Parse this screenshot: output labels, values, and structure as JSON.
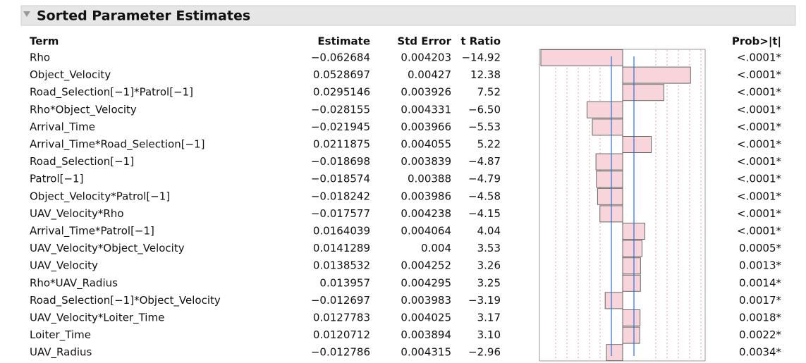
{
  "header": {
    "title": "Sorted Parameter Estimates"
  },
  "table": {
    "columns": [
      "Term",
      "Estimate",
      "Std Error",
      "t Ratio",
      "Prob>|t|"
    ],
    "rows": [
      {
        "term": "Rho",
        "estimate": "−0.062684",
        "std_error": "0.004203",
        "t_ratio": {
          "value": -14.92,
          "label": "−14.92"
        },
        "prob": "<.0001*"
      },
      {
        "term": "Object_Velocity",
        "estimate": "0.0528697",
        "std_error": "0.00427",
        "t_ratio": {
          "value": 12.38,
          "label": "12.38"
        },
        "prob": "<.0001*"
      },
      {
        "term": "Road_Selection[−1]*Patrol[−1]",
        "estimate": "0.0295146",
        "std_error": "0.003926",
        "t_ratio": {
          "value": 7.52,
          "label": "7.52"
        },
        "prob": "<.0001*"
      },
      {
        "term": "Rho*Object_Velocity",
        "estimate": "−0.028155",
        "std_error": "0.004331",
        "t_ratio": {
          "value": -6.5,
          "label": "−6.50"
        },
        "prob": "<.0001*"
      },
      {
        "term": "Arrival_Time",
        "estimate": "−0.021945",
        "std_error": "0.003966",
        "t_ratio": {
          "value": -5.53,
          "label": "−5.53"
        },
        "prob": "<.0001*"
      },
      {
        "term": "Arrival_Time*Road_Selection[−1]",
        "estimate": "0.0211875",
        "std_error": "0.004055",
        "t_ratio": {
          "value": 5.22,
          "label": "5.22"
        },
        "prob": "<.0001*"
      },
      {
        "term": "Road_Selection[−1]",
        "estimate": "−0.018698",
        "std_error": "0.003839",
        "t_ratio": {
          "value": -4.87,
          "label": "−4.87"
        },
        "prob": "<.0001*"
      },
      {
        "term": "Patrol[−1]",
        "estimate": "−0.018574",
        "std_error": "0.00388",
        "t_ratio": {
          "value": -4.79,
          "label": "−4.79"
        },
        "prob": "<.0001*"
      },
      {
        "term": "Object_Velocity*Patrol[−1]",
        "estimate": "−0.018242",
        "std_error": "0.003986",
        "t_ratio": {
          "value": -4.58,
          "label": "−4.58"
        },
        "prob": "<.0001*"
      },
      {
        "term": "UAV_Velocity*Rho",
        "estimate": "−0.017577",
        "std_error": "0.004238",
        "t_ratio": {
          "value": -4.15,
          "label": "−4.15"
        },
        "prob": "<.0001*"
      },
      {
        "term": "Arrival_Time*Patrol[−1]",
        "estimate": "0.0164039",
        "std_error": "0.004064",
        "t_ratio": {
          "value": 4.04,
          "label": "4.04"
        },
        "prob": "<.0001*"
      },
      {
        "term": "UAV_Velocity*Object_Velocity",
        "estimate": "0.0141289",
        "std_error": "0.004",
        "t_ratio": {
          "value": 3.53,
          "label": "3.53"
        },
        "prob": "0.0005*"
      },
      {
        "term": "UAV_Velocity",
        "estimate": "0.0138532",
        "std_error": "0.004252",
        "t_ratio": {
          "value": 3.26,
          "label": "3.26"
        },
        "prob": "0.0013*"
      },
      {
        "term": "Rho*UAV_Radius",
        "estimate": "0.013957",
        "std_error": "0.004295",
        "t_ratio": {
          "value": 3.25,
          "label": "3.25"
        },
        "prob": "0.0014*"
      },
      {
        "term": "Road_Selection[−1]*Object_Velocity",
        "estimate": "−0.012697",
        "std_error": "0.003983",
        "t_ratio": {
          "value": -3.19,
          "label": "−3.19"
        },
        "prob": "0.0017*"
      },
      {
        "term": "UAV_Velocity*Loiter_Time",
        "estimate": "0.0127783",
        "std_error": "0.004025",
        "t_ratio": {
          "value": 3.17,
          "label": "3.17"
        },
        "prob": "0.0018*"
      },
      {
        "term": "Loiter_Time",
        "estimate": "0.0120712",
        "std_error": "0.003894",
        "t_ratio": {
          "value": 3.1,
          "label": "3.10"
        },
        "prob": "0.0022*"
      },
      {
        "term": "UAV_Radius",
        "estimate": "−0.012786",
        "std_error": "0.004315",
        "t_ratio": {
          "value": -2.96,
          "label": "−2.96"
        },
        "prob": "0.0034*"
      }
    ]
  }
}
